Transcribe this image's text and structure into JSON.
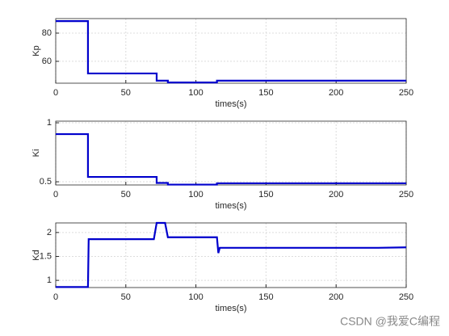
{
  "chart_data": [
    {
      "type": "line",
      "x_label": "times(s)",
      "y_label": "Kp",
      "x": [
        0,
        23,
        23,
        72,
        72,
        80,
        80,
        115,
        115,
        250
      ],
      "values": [
        88.5,
        88.5,
        51.4,
        51.4,
        46.3,
        46.3,
        45,
        45,
        46.3,
        46.3
      ],
      "color": "#0000cc",
      "xlim": [
        0,
        250
      ],
      "xticks": [
        0,
        50,
        100,
        150,
        200,
        250
      ],
      "ylim": [
        44.5,
        90.3
      ],
      "yticks": [
        60,
        80
      ],
      "grid": true
    },
    {
      "type": "line",
      "x_label": "times(s)",
      "y_label": "Ki",
      "x": [
        0,
        23,
        23,
        72,
        72,
        80,
        80,
        115,
        115,
        250
      ],
      "values": [
        0.904,
        0.904,
        0.541,
        0.541,
        0.49,
        0.49,
        0.476,
        0.476,
        0.487,
        0.487
      ],
      "color": "#0000cc",
      "xlim": [
        0,
        250
      ],
      "xticks": [
        0,
        50,
        100,
        150,
        200,
        250
      ],
      "ylim": [
        0.473,
        1.014
      ],
      "yticks": [
        0.5,
        1
      ],
      "grid": true
    },
    {
      "type": "line",
      "x_label": "times(s)",
      "y_label": "Kd",
      "x": [
        0,
        23,
        23.5,
        70,
        72,
        78,
        80,
        115,
        116,
        117,
        230,
        250
      ],
      "values": [
        0.86,
        0.86,
        1.86,
        1.86,
        2.2,
        2.2,
        1.9,
        1.9,
        1.57,
        1.68,
        1.68,
        1.69
      ],
      "color": "#0000cc",
      "xlim": [
        0,
        250
      ],
      "xticks": [
        0,
        50,
        100,
        150,
        200,
        250
      ],
      "ylim": [
        0.85,
        2.2
      ],
      "yticks": [
        1,
        1.5,
        2
      ],
      "grid": true
    }
  ],
  "watermark": "CSDN @我爱C编程"
}
